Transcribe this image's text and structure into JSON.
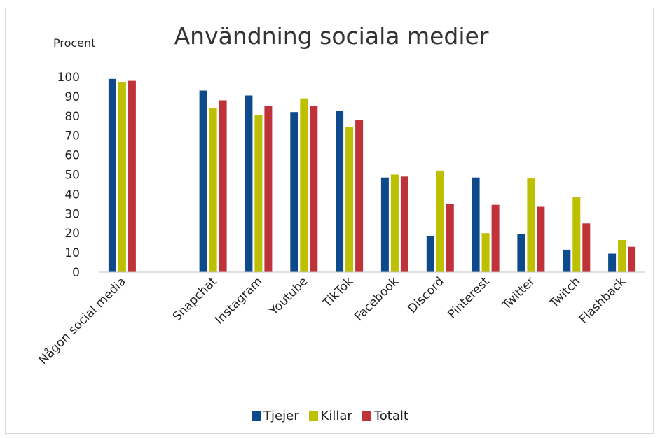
{
  "chart_data": {
    "type": "bar",
    "title": "Användning sociala medier",
    "ylabel": "Procent",
    "xlabel": "",
    "ylim": [
      0,
      100
    ],
    "yticks": [
      0,
      10,
      20,
      30,
      40,
      50,
      60,
      70,
      80,
      90,
      100
    ],
    "grid": false,
    "legend_position": "bottom",
    "categories": [
      "Någon social media",
      "",
      "Snapchat",
      "Instagram",
      "Youtube",
      "TikTok",
      "Facebook",
      "Discord",
      "Pinterest",
      "Twitter",
      "Twitch",
      "Flashback"
    ],
    "series": [
      {
        "name": "Tjejer",
        "color": "#0d4a8c",
        "values": [
          99,
          null,
          93,
          90.5,
          82,
          82.5,
          48.5,
          18.5,
          48.5,
          19.5,
          11.5,
          9.5
        ]
      },
      {
        "name": "Killar",
        "color": "#bcc000",
        "values": [
          97.5,
          null,
          84,
          80.5,
          89,
          74.5,
          50,
          52,
          20,
          48,
          38.5,
          16.5
        ]
      },
      {
        "name": "Totalt",
        "color": "#c0323a",
        "values": [
          98,
          null,
          88,
          85,
          85,
          78,
          49,
          35,
          34.5,
          33.5,
          25,
          13
        ]
      }
    ]
  }
}
